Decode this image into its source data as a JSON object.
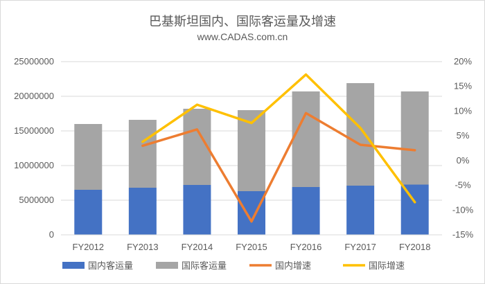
{
  "chart_data": {
    "type": "bar",
    "title": "巴基斯坦国内、国际客运量及增速",
    "subtitle": "www.CADAS.com.cn",
    "categories": [
      "FY2012",
      "FY2013",
      "FY2014",
      "FY2015",
      "FY2016",
      "FY2017",
      "FY2018"
    ],
    "stacked": true,
    "series": [
      {
        "name": "国内客运量",
        "type": "bar",
        "axis": "left",
        "color": "#4472c4",
        "values": [
          6500000,
          6800000,
          7200000,
          6300000,
          6900000,
          7100000,
          7250000
        ]
      },
      {
        "name": "国际客运量",
        "type": "bar",
        "axis": "left",
        "color": "#a5a5a5",
        "values": [
          9500000,
          9800000,
          11000000,
          11700000,
          13800000,
          14800000,
          13450000
        ]
      },
      {
        "name": "国内增速",
        "type": "line",
        "axis": "right",
        "color": "#ed7d31",
        "values": [
          null,
          3.0,
          6.3,
          -12.3,
          9.6,
          3.2,
          2.1
        ]
      },
      {
        "name": "国际增速",
        "type": "line",
        "axis": "right",
        "color": "#ffc000",
        "values": [
          null,
          3.8,
          11.3,
          7.6,
          17.4,
          6.6,
          -8.4
        ]
      }
    ],
    "y_left": {
      "min": 0,
      "max": 25000000,
      "ticks": [
        "0",
        "5000000",
        "10000000",
        "15000000",
        "20000000",
        "25000000"
      ]
    },
    "y_right": {
      "min": -15,
      "max": 20,
      "ticks": [
        "-15%",
        "-10%",
        "-5%",
        "0%",
        "5%",
        "10%",
        "15%",
        "20%"
      ]
    },
    "grid": true,
    "legend": "bottom"
  }
}
